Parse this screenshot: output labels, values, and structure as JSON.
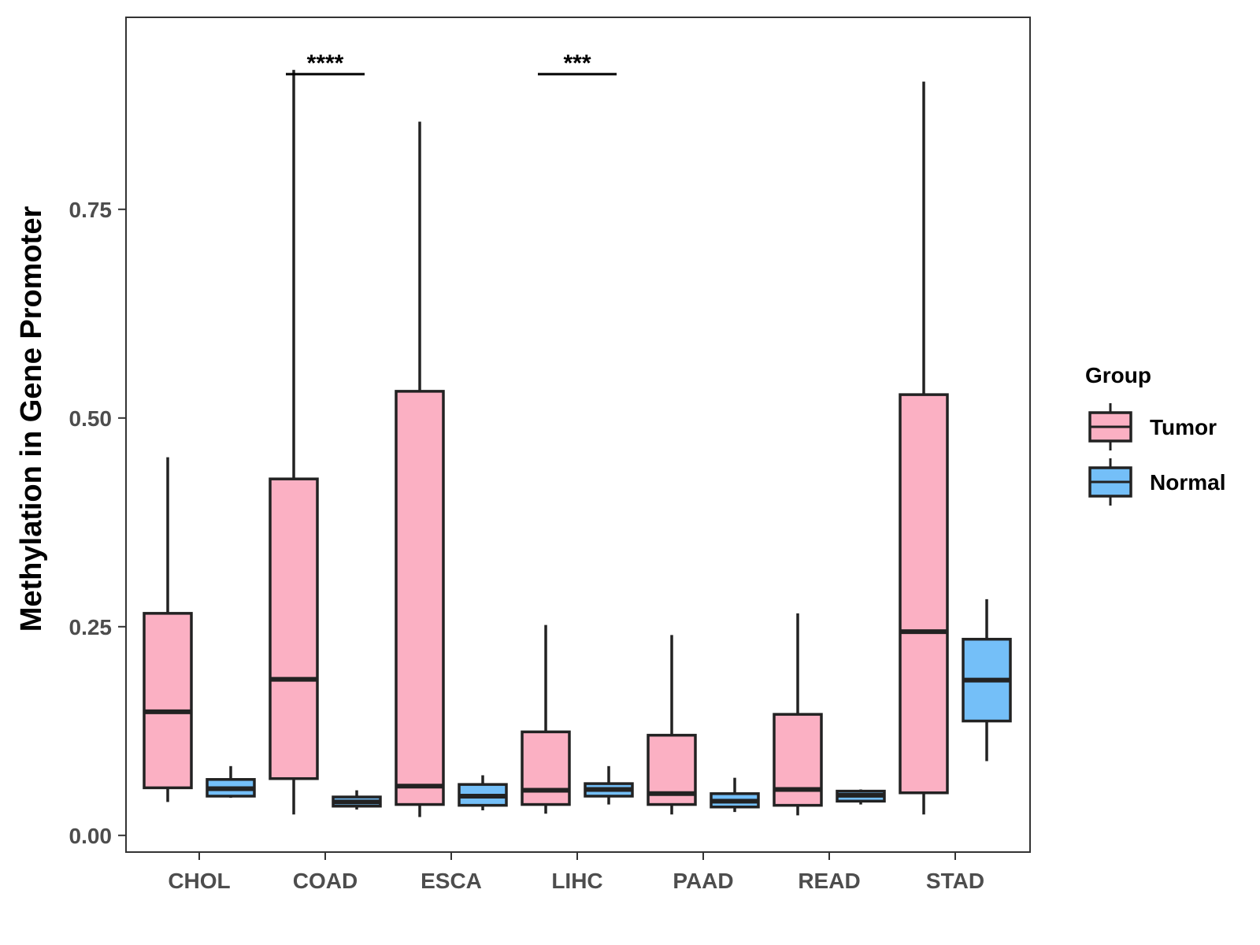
{
  "chart_data": {
    "type": "boxplot",
    "title": "",
    "xlabel": "",
    "ylabel": "Methylation in Gene Promoter",
    "ylim": [
      -0.02,
      0.98
    ],
    "yticks": [
      0.0,
      0.25,
      0.5,
      0.75
    ],
    "ytick_labels": [
      "0.00",
      "0.25",
      "0.50",
      "0.75"
    ],
    "categories": [
      "CHOL",
      "COAD",
      "ESCA",
      "LIHC",
      "PAAD",
      "READ",
      "STAD"
    ],
    "legend": {
      "title": "Group",
      "position": "right"
    },
    "series": [
      {
        "name": "Tumor",
        "color": "#FBB0C3",
        "boxes": [
          {
            "category": "CHOL",
            "min": 0.04,
            "q1": 0.057,
            "median": 0.148,
            "q3": 0.266,
            "max": 0.453
          },
          {
            "category": "COAD",
            "min": 0.025,
            "q1": 0.068,
            "median": 0.187,
            "q3": 0.427,
            "max": 0.917
          },
          {
            "category": "ESCA",
            "min": 0.022,
            "q1": 0.037,
            "median": 0.059,
            "q3": 0.532,
            "max": 0.855
          },
          {
            "category": "LIHC",
            "min": 0.026,
            "q1": 0.037,
            "median": 0.054,
            "q3": 0.124,
            "max": 0.252
          },
          {
            "category": "PAAD",
            "min": 0.025,
            "q1": 0.037,
            "median": 0.05,
            "q3": 0.12,
            "max": 0.24
          },
          {
            "category": "READ",
            "min": 0.024,
            "q1": 0.036,
            "median": 0.055,
            "q3": 0.145,
            "max": 0.266
          },
          {
            "category": "STAD",
            "min": 0.025,
            "q1": 0.051,
            "median": 0.244,
            "q3": 0.528,
            "max": 0.903
          }
        ]
      },
      {
        "name": "Normal",
        "color": "#74BFF8",
        "boxes": [
          {
            "category": "CHOL",
            "min": 0.045,
            "q1": 0.047,
            "median": 0.056,
            "q3": 0.067,
            "max": 0.083
          },
          {
            "category": "COAD",
            "min": 0.031,
            "q1": 0.035,
            "median": 0.04,
            "q3": 0.046,
            "max": 0.054
          },
          {
            "category": "ESCA",
            "min": 0.03,
            "q1": 0.036,
            "median": 0.047,
            "q3": 0.061,
            "max": 0.072
          },
          {
            "category": "LIHC",
            "min": 0.037,
            "q1": 0.047,
            "median": 0.055,
            "q3": 0.062,
            "max": 0.083
          },
          {
            "category": "PAAD",
            "min": 0.028,
            "q1": 0.034,
            "median": 0.041,
            "q3": 0.05,
            "max": 0.069
          },
          {
            "category": "READ",
            "min": 0.037,
            "q1": 0.041,
            "median": 0.048,
            "q3": 0.053,
            "max": 0.055
          },
          {
            "category": "STAD",
            "min": 0.089,
            "q1": 0.137,
            "median": 0.186,
            "q3": 0.235,
            "max": 0.283
          }
        ]
      }
    ],
    "annotations": [
      {
        "category": "COAD",
        "label": "****",
        "y": 0.912
      },
      {
        "category": "LIHC",
        "label": "***",
        "y": 0.912
      }
    ]
  }
}
